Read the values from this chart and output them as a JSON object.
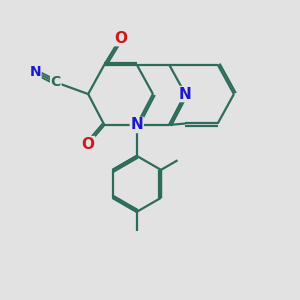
{
  "bg_color": "#e2e2e2",
  "bond_color": "#2d6b5a",
  "bond_width": 1.6,
  "dbo": 0.07,
  "atom_colors": {
    "N": "#1a1acc",
    "O": "#cc1a1a",
    "C": "#2d6b5a"
  },
  "font_size": 10,
  "cn_font_size": 10
}
